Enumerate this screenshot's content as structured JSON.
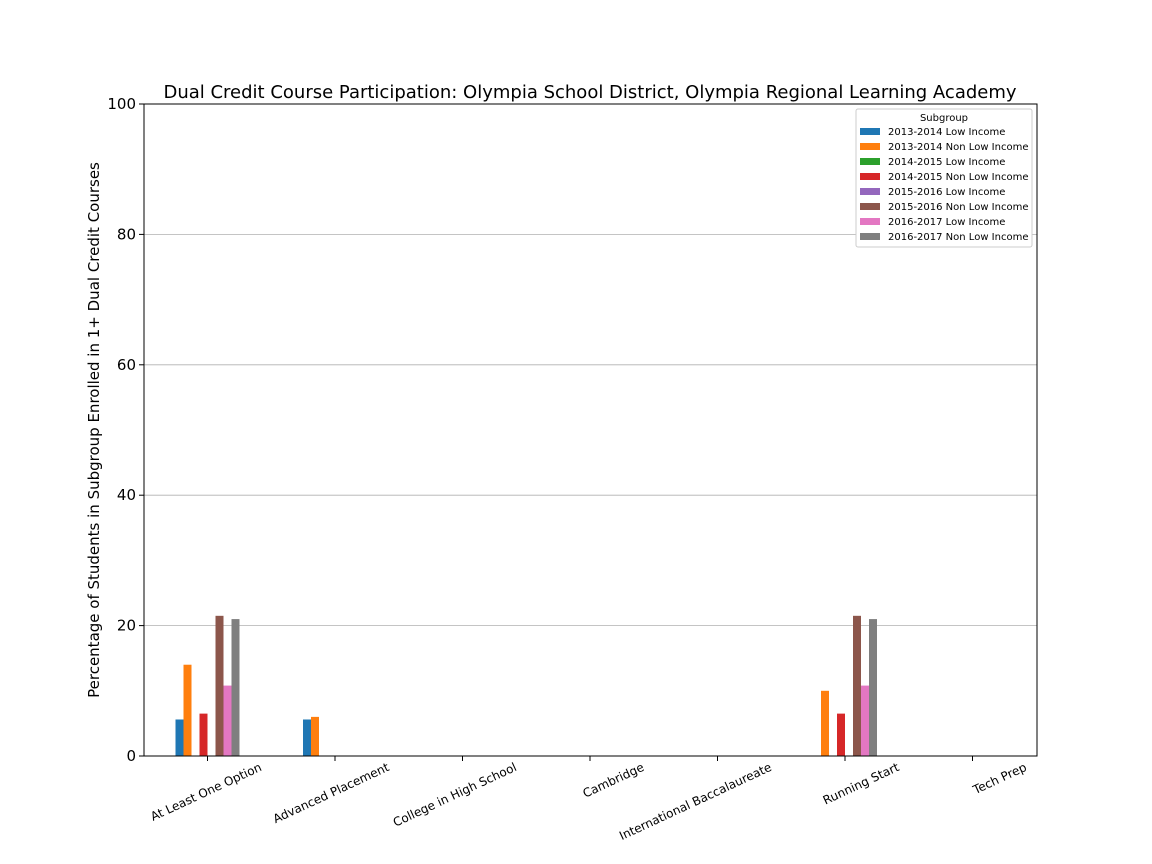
{
  "chart_data": {
    "type": "bar",
    "title": "Dual Credit Course Participation: Olympia School District, Olympia Regional Learning Academy",
    "xlabel": "",
    "ylabel": "Percentage of Students in Subgroup Enrolled in 1+ Dual Credit Courses",
    "ylim": [
      0,
      100
    ],
    "yticks": [
      0,
      20,
      40,
      60,
      80,
      100
    ],
    "grid": "horizontal",
    "legend": {
      "title": "Subgroup",
      "placement": "top-right"
    },
    "categories": [
      "At Least One Option",
      "Advanced Placement",
      "College in High School",
      "Cambridge",
      "International Baccalaureate",
      "Running Start",
      "Tech Prep"
    ],
    "series": [
      {
        "name": "2013-2014 Low Income",
        "color": "#1f77b4",
        "values": [
          5.6,
          5.6,
          0,
          0,
          0,
          0,
          0
        ]
      },
      {
        "name": "2013-2014 Non Low Income",
        "color": "#ff7f0e",
        "values": [
          14.0,
          6.0,
          0,
          0,
          0,
          10.0,
          0
        ]
      },
      {
        "name": "2014-2015 Low Income",
        "color": "#2ca02c",
        "values": [
          0,
          0,
          0,
          0,
          0,
          0,
          0
        ]
      },
      {
        "name": "2014-2015 Non Low Income",
        "color": "#d62728",
        "values": [
          6.5,
          0,
          0,
          0,
          0,
          6.5,
          0
        ]
      },
      {
        "name": "2015-2016 Low Income",
        "color": "#9467bd",
        "values": [
          0,
          0,
          0,
          0,
          0,
          0,
          0
        ]
      },
      {
        "name": "2015-2016 Non Low Income",
        "color": "#8c564b",
        "values": [
          21.5,
          0,
          0,
          0,
          0,
          21.5,
          0
        ]
      },
      {
        "name": "2016-2017 Low Income",
        "color": "#e377c2",
        "values": [
          10.8,
          0,
          0,
          0,
          0,
          10.8,
          0
        ]
      },
      {
        "name": "2016-2017 Non Low Income",
        "color": "#7f7f7f",
        "values": [
          21.0,
          0,
          0,
          0,
          0,
          21.0,
          0
        ]
      }
    ]
  }
}
